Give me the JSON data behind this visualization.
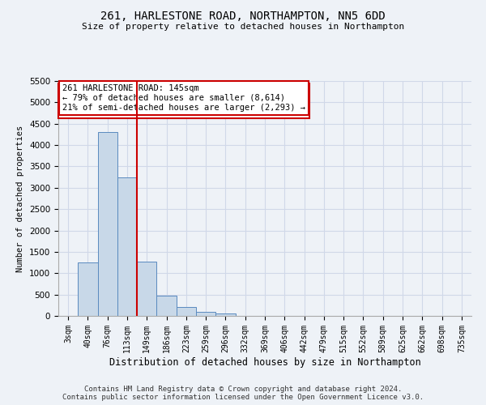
{
  "title_line1": "261, HARLESTONE ROAD, NORTHAMPTON, NN5 6DD",
  "title_line2": "Size of property relative to detached houses in Northampton",
  "xlabel": "Distribution of detached houses by size in Northampton",
  "ylabel": "Number of detached properties",
  "categories": [
    "3sqm",
    "40sqm",
    "76sqm",
    "113sqm",
    "149sqm",
    "186sqm",
    "223sqm",
    "259sqm",
    "296sqm",
    "332sqm",
    "369sqm",
    "406sqm",
    "442sqm",
    "479sqm",
    "515sqm",
    "552sqm",
    "589sqm",
    "625sqm",
    "662sqm",
    "698sqm",
    "735sqm"
  ],
  "values": [
    0,
    1250,
    4300,
    3250,
    1280,
    480,
    200,
    90,
    60,
    0,
    0,
    0,
    0,
    0,
    0,
    0,
    0,
    0,
    0,
    0,
    0
  ],
  "bar_color": "#c8d8e8",
  "bar_edge_color": "#5a8abf",
  "property_line_x": 3.5,
  "property_line_color": "#cc0000",
  "annotation_text": "261 HARLESTONE ROAD: 145sqm\n← 79% of detached houses are smaller (8,614)\n21% of semi-detached houses are larger (2,293) →",
  "annotation_box_color": "#ffffff",
  "annotation_box_edge_color": "#cc0000",
  "ylim": [
    0,
    5500
  ],
  "yticks": [
    0,
    500,
    1000,
    1500,
    2000,
    2500,
    3000,
    3500,
    4000,
    4500,
    5000,
    5500
  ],
  "grid_color": "#d0d8e8",
  "footnote": "Contains HM Land Registry data © Crown copyright and database right 2024.\nContains public sector information licensed under the Open Government Licence v3.0.",
  "bg_color": "#eef2f7"
}
